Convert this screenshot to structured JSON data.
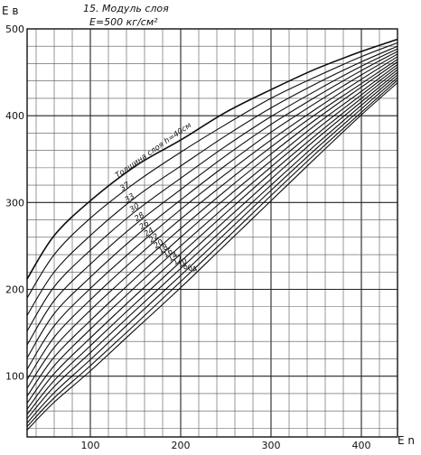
{
  "chart_data": {
    "type": "line",
    "title": "15. Модуль слоя",
    "subtitle": "E=500 кг/см²",
    "xlabel": "E n",
    "ylabel": "E в",
    "xlim": [
      30,
      440
    ],
    "ylim": [
      30,
      500
    ],
    "x_ticks": [
      "100",
      "200",
      "300",
      "400"
    ],
    "y_ticks": [
      "100",
      "200",
      "300",
      "400",
      "500"
    ],
    "grid": true,
    "curve_label_prefix": "Толщина слоя h=40см",
    "series": [
      {
        "name": "40",
        "x": [
          30,
          60,
          100,
          150,
          200,
          250,
          300,
          350,
          400,
          440
        ],
        "y": [
          212,
          262,
          302,
          342,
          372,
          404,
          430,
          454,
          474,
          488
        ]
      },
      {
        "name": "37",
        "x": [
          30,
          60,
          100,
          150,
          200,
          250,
          300,
          350,
          400,
          440
        ],
        "y": [
          190,
          240,
          282,
          323,
          358,
          390,
          420,
          445,
          468,
          484
        ]
      },
      {
        "name": "33",
        "x": [
          30,
          60,
          100,
          150,
          200,
          250,
          300,
          350,
          400,
          440
        ],
        "y": [
          170,
          220,
          262,
          306,
          342,
          377,
          409,
          437,
          462,
          480
        ]
      },
      {
        "name": "30",
        "x": [
          30,
          60,
          100,
          150,
          200,
          250,
          300,
          350,
          400,
          440
        ],
        "y": [
          152,
          203,
          245,
          290,
          328,
          365,
          399,
          429,
          457,
          477
        ]
      },
      {
        "name": "28",
        "x": [
          30,
          60,
          100,
          150,
          200,
          250,
          300,
          350,
          400,
          440
        ],
        "y": [
          136,
          187,
          229,
          275,
          315,
          354,
          390,
          422,
          452,
          474
        ]
      },
      {
        "name": "26",
        "x": [
          30,
          60,
          100,
          150,
          200,
          250,
          300,
          350,
          400,
          440
        ],
        "y": [
          121,
          172,
          214,
          261,
          303,
          343,
          381,
          415,
          447,
          471
        ]
      },
      {
        "name": "24",
        "x": [
          30,
          60,
          100,
          150,
          200,
          250,
          300,
          350,
          400,
          440
        ],
        "y": [
          108,
          158,
          201,
          248,
          292,
          333,
          372,
          408,
          442,
          468
        ]
      },
      {
        "name": "22",
        "x": [
          30,
          60,
          100,
          150,
          200,
          250,
          300,
          350,
          400,
          440
        ],
        "y": [
          96,
          145,
          188,
          236,
          281,
          323,
          364,
          402,
          437,
          465
        ]
      },
      {
        "name": "20",
        "x": [
          30,
          60,
          100,
          150,
          200,
          250,
          300,
          350,
          400,
          440
        ],
        "y": [
          86,
          133,
          176,
          224,
          270,
          314,
          356,
          396,
          433,
          462
        ]
      },
      {
        "name": "18",
        "x": [
          30,
          60,
          100,
          150,
          200,
          250,
          300,
          350,
          400,
          440
        ],
        "y": [
          77,
          122,
          164,
          213,
          260,
          305,
          348,
          390,
          428,
          459
        ]
      },
      {
        "name": "16",
        "x": [
          30,
          60,
          100,
          150,
          200,
          250,
          300,
          350,
          400,
          440
        ],
        "y": [
          69,
          112,
          154,
          203,
          250,
          296,
          341,
          384,
          424,
          456
        ]
      },
      {
        "name": "14",
        "x": [
          30,
          60,
          100,
          150,
          200,
          250,
          300,
          350,
          400,
          440
        ],
        "y": [
          62,
          103,
          144,
          193,
          241,
          288,
          334,
          378,
          420,
          453
        ]
      },
      {
        "name": "12",
        "x": [
          30,
          60,
          100,
          150,
          200,
          250,
          300,
          350,
          400,
          440
        ],
        "y": [
          56,
          95,
          135,
          184,
          232,
          280,
          327,
          373,
          416,
          450
        ]
      },
      {
        "name": "10",
        "x": [
          30,
          60,
          100,
          150,
          200,
          250,
          300,
          350,
          400,
          440
        ],
        "y": [
          51,
          88,
          127,
          176,
          224,
          272,
          320,
          367,
          412,
          447
        ]
      },
      {
        "name": "8",
        "x": [
          30,
          60,
          100,
          150,
          200,
          250,
          300,
          350,
          400,
          440
        ],
        "y": [
          46,
          81,
          119,
          168,
          216,
          265,
          314,
          362,
          408,
          444
        ]
      },
      {
        "name": "6",
        "x": [
          30,
          60,
          100,
          150,
          200,
          250,
          300,
          350,
          400,
          440
        ],
        "y": [
          42,
          75,
          112,
          160,
          209,
          258,
          308,
          357,
          404,
          441
        ]
      },
      {
        "name": "4",
        "x": [
          30,
          60,
          100,
          150,
          200,
          250,
          300,
          350,
          400,
          440
        ],
        "y": [
          38,
          70,
          106,
          154,
          202,
          252,
          302,
          352,
          401,
          438
        ]
      }
    ]
  }
}
